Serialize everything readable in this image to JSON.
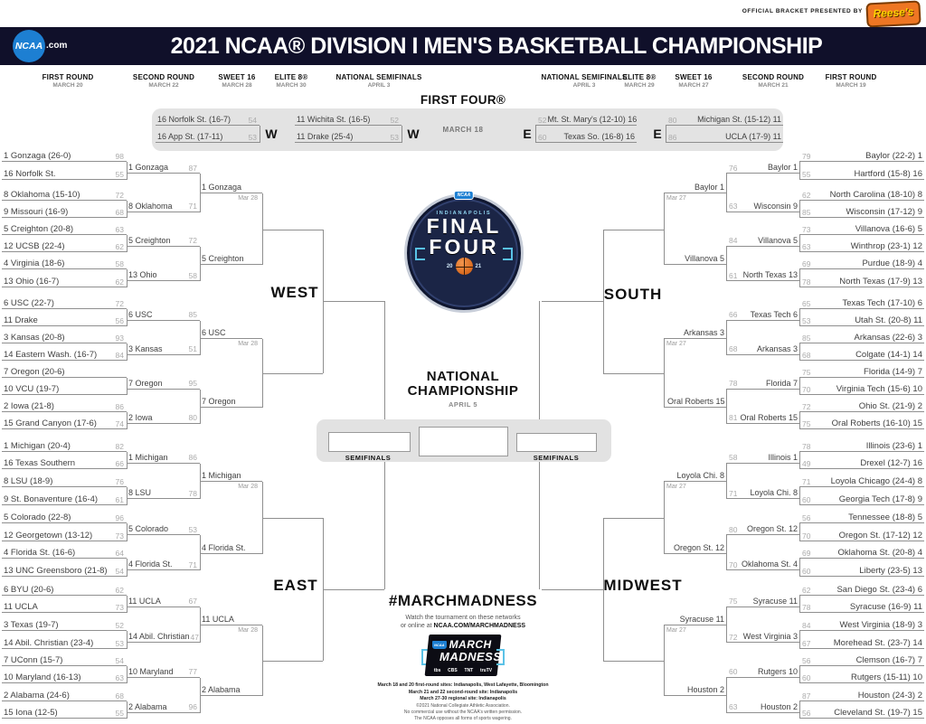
{
  "banner": {
    "presented_by": "OFFICIAL BRACKET PRESENTED BY",
    "sponsor": "Reese's"
  },
  "header": {
    "logo": "NCAA",
    "logo_suffix": ".com",
    "title": "2021 NCAA® DIVISION I MEN'S BASKETBALL CHAMPIONSHIP"
  },
  "rounds": [
    {
      "label": "FIRST ROUND",
      "date": "MARCH 20"
    },
    {
      "label": "SECOND ROUND",
      "date": "MARCH 22"
    },
    {
      "label": "SWEET 16",
      "date": "MARCH 28"
    },
    {
      "label": "ELITE 8®",
      "date": "MARCH 30"
    },
    {
      "label": "NATIONAL SEMIFINALS",
      "date": "APRIL 3"
    },
    {
      "label": "NATIONAL SEMIFINALS",
      "date": "APRIL 3"
    },
    {
      "label": "ELITE 8®",
      "date": "MARCH 29"
    },
    {
      "label": "SWEET 16",
      "date": "MARCH 27"
    },
    {
      "label": "SECOND ROUND",
      "date": "MARCH 21"
    },
    {
      "label": "FIRST ROUND",
      "date": "MARCH 19"
    }
  ],
  "first_four": {
    "title": "FIRST FOUR®",
    "date": "MARCH 18",
    "games": [
      {
        "region": "W",
        "teams": [
          {
            "team": "16 Norfolk St. (16-7)",
            "score": "54"
          },
          {
            "team": "16 App St. (17-11)",
            "score": "53"
          }
        ]
      },
      {
        "region": "W",
        "teams": [
          {
            "team": "11 Wichita St. (16-5)",
            "score": "52"
          },
          {
            "team": "11 Drake (25-4)",
            "score": "53"
          }
        ]
      },
      {
        "region": "E",
        "teams": [
          {
            "team": "Mt. St. Mary's (12-10) 16",
            "score": "52"
          },
          {
            "team": "Texas So. (16-8) 16",
            "score": "60"
          }
        ]
      },
      {
        "region": "E",
        "teams": [
          {
            "team": "Michigan St. (15-12) 11",
            "score": "80"
          },
          {
            "team": "UCLA (17-9) 11",
            "score": "86"
          }
        ]
      }
    ]
  },
  "regions": {
    "west": {
      "label": "WEST",
      "round1": [
        {
          "team": "1 Gonzaga (26-0)",
          "score": "98"
        },
        {
          "team": "16 Norfolk St.",
          "score": "55"
        },
        {
          "team": "8 Oklahoma (15-10)",
          "score": "72"
        },
        {
          "team": "9 Missouri (16-9)",
          "score": "68"
        },
        {
          "team": "5 Creighton (20-8)",
          "score": "63"
        },
        {
          "team": "12 UCSB (22-4)",
          "score": "62"
        },
        {
          "team": "4 Virginia (18-6)",
          "score": "58"
        },
        {
          "team": "13 Ohio (16-7)",
          "score": "62"
        },
        {
          "team": "6 USC (22-7)",
          "score": "72"
        },
        {
          "team": "11 Drake",
          "score": "56"
        },
        {
          "team": "3 Kansas (20-8)",
          "score": "93"
        },
        {
          "team": "14 Eastern Wash. (16-7)",
          "score": "84"
        },
        {
          "team": "7 Oregon (20-6)",
          "score": ""
        },
        {
          "team": "10 VCU (19-7)",
          "score": ""
        },
        {
          "team": "2 Iowa (21-8)",
          "score": "86"
        },
        {
          "team": "15 Grand Canyon (17-6)",
          "score": "74"
        }
      ],
      "round2": [
        {
          "team": "1 Gonzaga",
          "score": "87"
        },
        {
          "team": "8 Oklahoma",
          "score": "71"
        },
        {
          "team": "5 Creighton",
          "score": "72"
        },
        {
          "team": "13 Ohio",
          "score": "58"
        },
        {
          "team": "6 USC",
          "score": "85"
        },
        {
          "team": "3 Kansas",
          "score": "51"
        },
        {
          "team": "7 Oregon",
          "score": "95"
        },
        {
          "team": "2 Iowa",
          "score": "80"
        }
      ],
      "sweet16": [
        {
          "team": "1 Gonzaga",
          "date": "Mar 28"
        },
        {
          "team": "5 Creighton",
          "date": ""
        },
        {
          "team": "6 USC",
          "date": "Mar 28"
        },
        {
          "team": "7 Oregon",
          "date": ""
        }
      ]
    },
    "east": {
      "label": "EAST",
      "round1": [
        {
          "team": "1 Michigan (20-4)",
          "score": "82"
        },
        {
          "team": "16 Texas Southern",
          "score": "66"
        },
        {
          "team": "8 LSU (18-9)",
          "score": "76"
        },
        {
          "team": "9 St. Bonaventure (16-4)",
          "score": "61"
        },
        {
          "team": "5 Colorado (22-8)",
          "score": "96"
        },
        {
          "team": "12 Georgetown (13-12)",
          "score": "73"
        },
        {
          "team": "4 Florida St. (16-6)",
          "score": "64"
        },
        {
          "team": "13 UNC Greensboro (21-8)",
          "score": "54"
        },
        {
          "team": "6 BYU (20-6)",
          "score": "62"
        },
        {
          "team": "11 UCLA",
          "score": "73"
        },
        {
          "team": "3 Texas (19-7)",
          "score": "52"
        },
        {
          "team": "14 Abil. Christian (23-4)",
          "score": "53"
        },
        {
          "team": "7 UConn (15-7)",
          "score": "54"
        },
        {
          "team": "10 Maryland (16-13)",
          "score": "63"
        },
        {
          "team": "2 Alabama (24-6)",
          "score": "68"
        },
        {
          "team": "15 Iona (12-5)",
          "score": "55"
        }
      ],
      "round2": [
        {
          "team": "1 Michigan",
          "score": "86"
        },
        {
          "team": "8 LSU",
          "score": "78"
        },
        {
          "team": "5 Colorado",
          "score": "53"
        },
        {
          "team": "4 Florida St.",
          "score": "71"
        },
        {
          "team": "11 UCLA",
          "score": "67"
        },
        {
          "team": "14 Abil. Christian",
          "score": "47"
        },
        {
          "team": "10 Maryland",
          "score": "77"
        },
        {
          "team": "2 Alabama",
          "score": "96"
        }
      ],
      "sweet16": [
        {
          "team": "1 Michigan",
          "date": "Mar 28"
        },
        {
          "team": "4 Florida St.",
          "date": ""
        },
        {
          "team": "11 UCLA",
          "date": "Mar 28"
        },
        {
          "team": "2 Alabama",
          "date": ""
        }
      ]
    },
    "south": {
      "label": "SOUTH",
      "round1": [
        {
          "team": "Baylor (22-2) 1",
          "score": "79"
        },
        {
          "team": "Hartford (15-8) 16",
          "score": "55"
        },
        {
          "team": "North Carolina (18-10) 8",
          "score": "62"
        },
        {
          "team": "Wisconsin (17-12) 9",
          "score": "85"
        },
        {
          "team": "Villanova (16-6) 5",
          "score": "73"
        },
        {
          "team": "Winthrop (23-1) 12",
          "score": "63"
        },
        {
          "team": "Purdue (18-9) 4",
          "score": "69"
        },
        {
          "team": "North Texas (17-9) 13",
          "score": "78"
        },
        {
          "team": "Texas Tech (17-10) 6",
          "score": "65"
        },
        {
          "team": "Utah St. (20-8) 11",
          "score": "53"
        },
        {
          "team": "Arkansas (22-6) 3",
          "score": "85"
        },
        {
          "team": "Colgate (14-1) 14",
          "score": "68"
        },
        {
          "team": "Florida (14-9) 7",
          "score": "75"
        },
        {
          "team": "Virginia Tech (15-6) 10",
          "score": "70"
        },
        {
          "team": "Ohio St. (21-9) 2",
          "score": "72"
        },
        {
          "team": "Oral Roberts (16-10) 15",
          "score": "75"
        }
      ],
      "round2": [
        {
          "team": "Baylor 1",
          "score": "76"
        },
        {
          "team": "Wisconsin 9",
          "score": "63"
        },
        {
          "team": "Villanova 5",
          "score": "84"
        },
        {
          "team": "North Texas 13",
          "score": "61"
        },
        {
          "team": "Texas Tech 6",
          "score": "66"
        },
        {
          "team": "Arkansas 3",
          "score": "68"
        },
        {
          "team": "Florida 7",
          "score": "78"
        },
        {
          "team": "Oral Roberts 15",
          "score": "81"
        }
      ],
      "sweet16": [
        {
          "team": "Baylor 1",
          "date": "Mar 27"
        },
        {
          "team": "Villanova 5",
          "date": ""
        },
        {
          "team": "Arkansas 3",
          "date": "Mar 27"
        },
        {
          "team": "Oral Roberts 15",
          "date": ""
        }
      ]
    },
    "midwest": {
      "label": "MIDWEST",
      "round1": [
        {
          "team": "Illinois (23-6) 1",
          "score": "78"
        },
        {
          "team": "Drexel (12-7) 16",
          "score": "49"
        },
        {
          "team": "Loyola Chicago (24-4) 8",
          "score": "71"
        },
        {
          "team": "Georgia Tech (17-8) 9",
          "score": "60"
        },
        {
          "team": "Tennessee (18-8) 5",
          "score": "56"
        },
        {
          "team": "Oregon St. (17-12) 12",
          "score": "70"
        },
        {
          "team": "Oklahoma St. (20-8) 4",
          "score": "69"
        },
        {
          "team": "Liberty (23-5) 13",
          "score": "60"
        },
        {
          "team": "San Diego St. (23-4) 6",
          "score": "62"
        },
        {
          "team": "Syracuse (16-9) 11",
          "score": "78"
        },
        {
          "team": "West Virginia (18-9) 3",
          "score": "84"
        },
        {
          "team": "Morehead St. (23-7) 14",
          "score": "67"
        },
        {
          "team": "Clemson (16-7) 7",
          "score": "56"
        },
        {
          "team": "Rutgers (15-11) 10",
          "score": "60"
        },
        {
          "team": "Houston (24-3) 2",
          "score": "87"
        },
        {
          "team": "Cleveland St. (19-7) 15",
          "score": "56"
        }
      ],
      "round2": [
        {
          "team": "Illinois 1",
          "score": "58"
        },
        {
          "team": "Loyola Chi. 8",
          "score": "71"
        },
        {
          "team": "Oregon St. 12",
          "score": "80"
        },
        {
          "team": "Oklahoma St. 4",
          "score": "70"
        },
        {
          "team": "Syracuse 11",
          "score": "75"
        },
        {
          "team": "West Virginia 3",
          "score": "72"
        },
        {
          "team": "Rutgers 10",
          "score": "60"
        },
        {
          "team": "Houston 2",
          "score": "63"
        }
      ],
      "sweet16": [
        {
          "team": "Loyola Chi. 8",
          "date": "Mar 27"
        },
        {
          "team": "Oregon St. 12",
          "date": ""
        },
        {
          "team": "Syracuse 11",
          "date": "Mar 27"
        },
        {
          "team": "Houston 2",
          "date": ""
        }
      ]
    }
  },
  "center": {
    "final_four": {
      "city": "INDIANAPOLIS",
      "line1": "FINAL",
      "line2": "FOUR",
      "year_left": "20",
      "year_right": "21",
      "badge": "NCAA"
    },
    "championship": {
      "line1": "NATIONAL",
      "line2": "CHAMPIONSHIP",
      "date": "APRIL 5"
    },
    "semifinals_label": "SEMIFINALS"
  },
  "madness": {
    "hashtag": "#MARCHMADNESS",
    "watch_line1": "Watch the tournament on these networks",
    "watch_line2_prefix": "or online at ",
    "watch_link": "NCAA.COM/MARCHMADNESS",
    "logo_badge": "NCAA",
    "logo_line1": "MARCH",
    "logo_line2": "MADNESS",
    "networks": [
      "tbs",
      "CBS",
      "TNT",
      "truTV"
    ]
  },
  "fine_print": {
    "sites": [
      "March 18 and 20 first-round sites: Indianapolis, West Lafayette, Bloomington",
      "March 21 and 22 second-round site: Indianapolis",
      "March 27-30 regional site: Indianapolis"
    ],
    "legal": [
      "©2021 National Collegiate Athletic Association.",
      "No commercial use without the NCAA's written permission.",
      "The NCAA opposes all forms of sports wagering."
    ]
  }
}
